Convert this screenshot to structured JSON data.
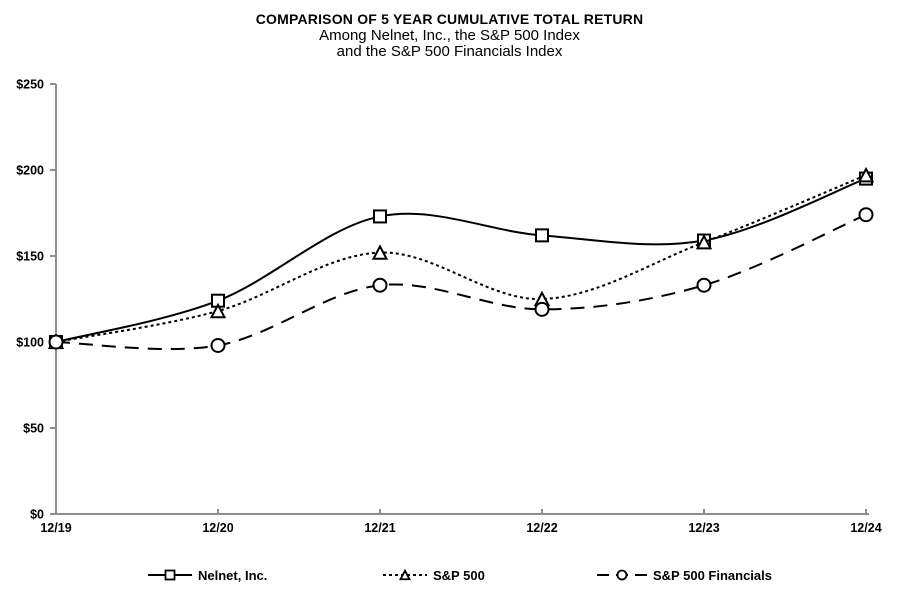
{
  "chart_data": {
    "type": "line",
    "title": "COMPARISON OF 5 YEAR CUMULATIVE TOTAL RETURN",
    "subtitle_line1": "Among Nelnet, Inc., the S&P 500 Index",
    "subtitle_line2": "and the S&P 500 Financials Index",
    "categories": [
      "12/19",
      "12/20",
      "12/21",
      "12/22",
      "12/23",
      "12/24"
    ],
    "series": [
      {
        "name": "Nelnet, Inc.",
        "line_style": "solid",
        "marker": "square",
        "values": [
          100,
          124,
          173,
          162,
          159,
          195
        ]
      },
      {
        "name": "S&P 500",
        "line_style": "dotted",
        "marker": "triangle",
        "values": [
          100,
          118,
          152,
          125,
          158,
          197
        ]
      },
      {
        "name": "S&P 500 Financials",
        "line_style": "dashed",
        "marker": "circle",
        "values": [
          100,
          98,
          133,
          119,
          133,
          174
        ]
      }
    ],
    "y_ticks": [
      {
        "label": "$0",
        "value": 0
      },
      {
        "label": "$50",
        "value": 50
      },
      {
        "label": "$100",
        "value": 100
      },
      {
        "label": "$150",
        "value": 150
      },
      {
        "label": "$200",
        "value": 200
      },
      {
        "label": "$250",
        "value": 250
      }
    ],
    "ylim": [
      0,
      250
    ],
    "grid": false,
    "legend_position": "bottom",
    "colors": {
      "line": "#000000",
      "marker_fill": "#ffffff",
      "axis": "#8E8E8E",
      "text": "#000000",
      "background": "#ffffff"
    }
  }
}
